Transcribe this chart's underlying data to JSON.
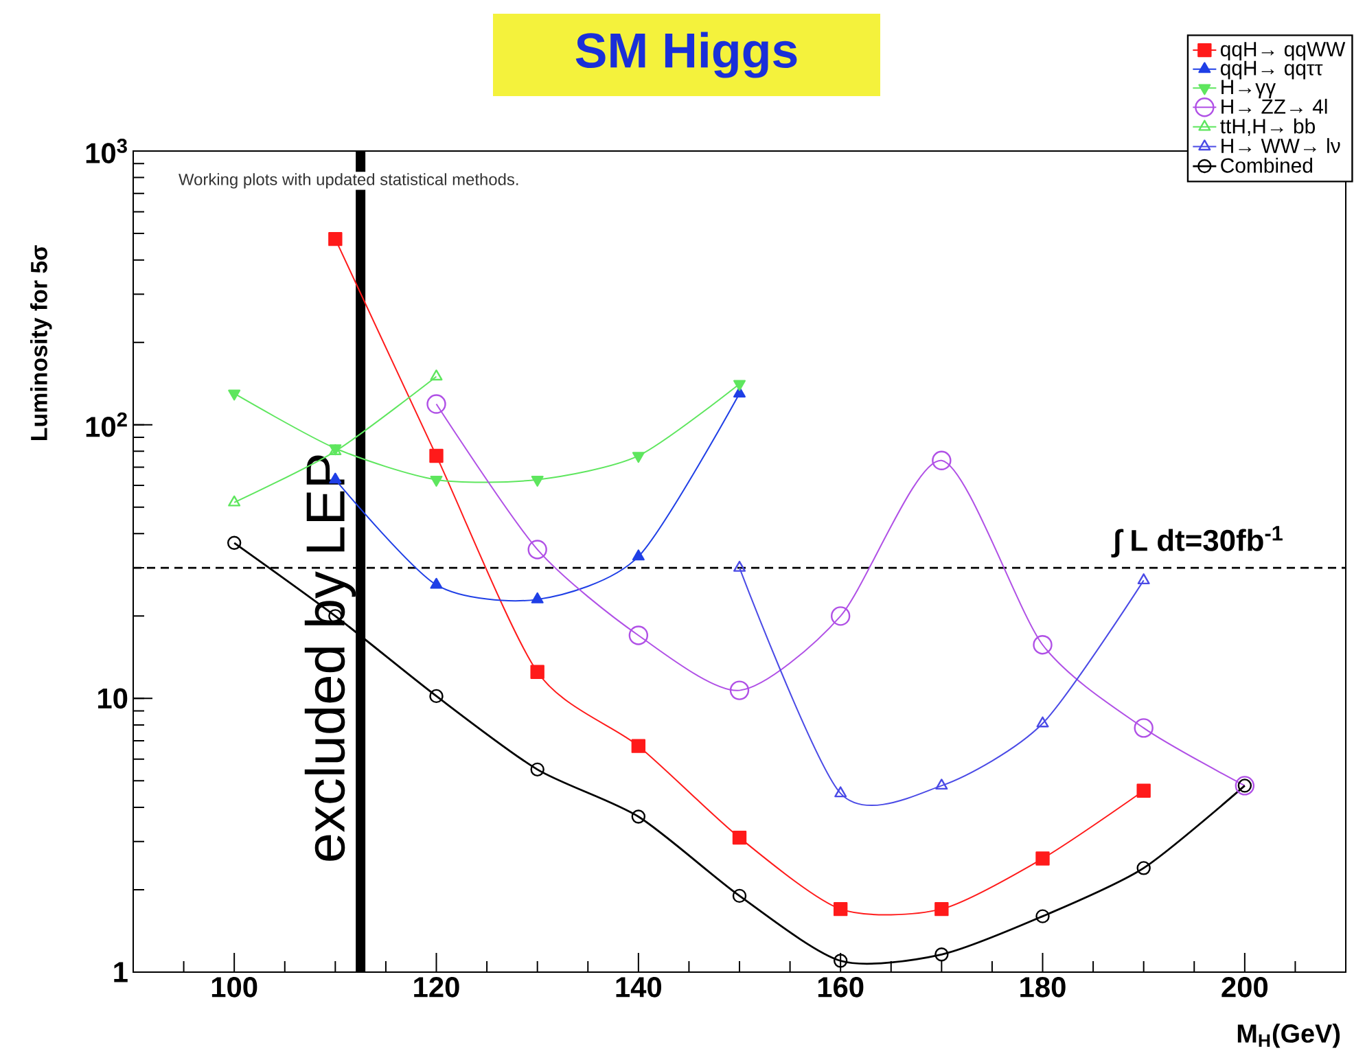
{
  "chart_data": {
    "type": "line",
    "title": "SM Higgs",
    "xlabel": "M$_{H}$(GeV)",
    "ylabel": "Luminosity for 5σ",
    "annotations": [
      "Working plots with updated statistical methods."
    ],
    "log": "y",
    "legend": "top right",
    "line_style": "solid",
    "xlim": [
      90,
      210
    ],
    "ylim": [
      1,
      1000
    ],
    "xticks": [
      {
        "value": 95,
        "label": null
      },
      100,
      {
        "value": 105,
        "label": null
      },
      {
        "value": 110,
        "label": null
      },
      {
        "value": 115,
        "label": null
      },
      120,
      {
        "value": 125,
        "label": null
      },
      {
        "value": 130,
        "label": null
      },
      {
        "value": 135,
        "label": null
      },
      140,
      {
        "value": 145,
        "label": null
      },
      {
        "value": 150,
        "label": null
      },
      {
        "value": 155,
        "label": null
      },
      160,
      {
        "value": 165,
        "label": null
      },
      {
        "value": 170,
        "label": null
      },
      {
        "value": 175,
        "label": null
      },
      180,
      {
        "value": 185,
        "label": null
      },
      {
        "value": 190,
        "label": null
      },
      {
        "value": 195,
        "label": null
      },
      200,
      {
        "value": 205,
        "label": null
      }
    ],
    "yticks": [
      1,
      10,
      {
        "value": 100,
        "label": "10$^{2}$"
      },
      {
        "value": 1000,
        "label": "10$^{3}$"
      }
    ],
    "ref_lines": [
      {
        "axis": "x",
        "value": 112.5,
        "label": "excluded by LEP",
        "color": "#000000",
        "line_style": "solid"
      },
      {
        "axis": "y",
        "value": 30,
        "label": "∫ L dt=30fb$^{-1}$",
        "color": "#000000",
        "line_style": "dashed"
      }
    ],
    "series": [
      {
        "name": "qqH→ qqWW",
        "color": "#ff1a1a",
        "marker": "square",
        "x": [
          110,
          120,
          130,
          140,
          150,
          160,
          170,
          180,
          190
        ],
        "values": [
          477,
          77,
          12.5,
          6.7,
          3.1,
          1.7,
          1.7,
          2.6,
          4.6
        ]
      },
      {
        "name": "qqH→ qqττ",
        "color": "#1f3fe6",
        "marker": "triangle",
        "x": [
          110,
          120,
          130,
          140,
          150
        ],
        "values": [
          63,
          26,
          23,
          33,
          130
        ]
      },
      {
        "name": "H→γγ",
        "color": "#5ee65e",
        "marker": "triangle-down",
        "x": [
          100,
          110,
          120,
          130,
          140,
          150
        ],
        "values": [
          130,
          82,
          63,
          63,
          77,
          141
        ]
      },
      {
        "name": "H→ ZZ→ 4l",
        "color": "#b050e6",
        "marker": "circle",
        "x": [
          120,
          130,
          140,
          150,
          160,
          170,
          180,
          190,
          200
        ],
        "values": [
          119,
          35,
          17,
          10.7,
          20,
          74,
          15.7,
          7.8,
          4.8
        ]
      },
      {
        "name": "ttH,H→ bb",
        "color": "#5ee65e",
        "marker": "triangle",
        "x": [
          100,
          110,
          120
        ],
        "values": [
          52,
          80,
          150
        ]
      },
      {
        "name": "H→ WW→ lν",
        "color": "#4a4ae6",
        "marker": "triangle",
        "x": [
          150,
          160,
          170,
          180,
          190
        ],
        "values": [
          30,
          4.5,
          4.8,
          8.1,
          27
        ]
      },
      {
        "name": "Combined",
        "color": "#000000",
        "marker": "circle",
        "x": [
          100,
          110,
          120,
          130,
          140,
          150,
          160,
          170,
          180,
          190,
          200
        ],
        "values": [
          37,
          20,
          10.2,
          5.5,
          3.7,
          1.9,
          1.1,
          1.16,
          1.6,
          2.4,
          4.8
        ]
      }
    ]
  }
}
